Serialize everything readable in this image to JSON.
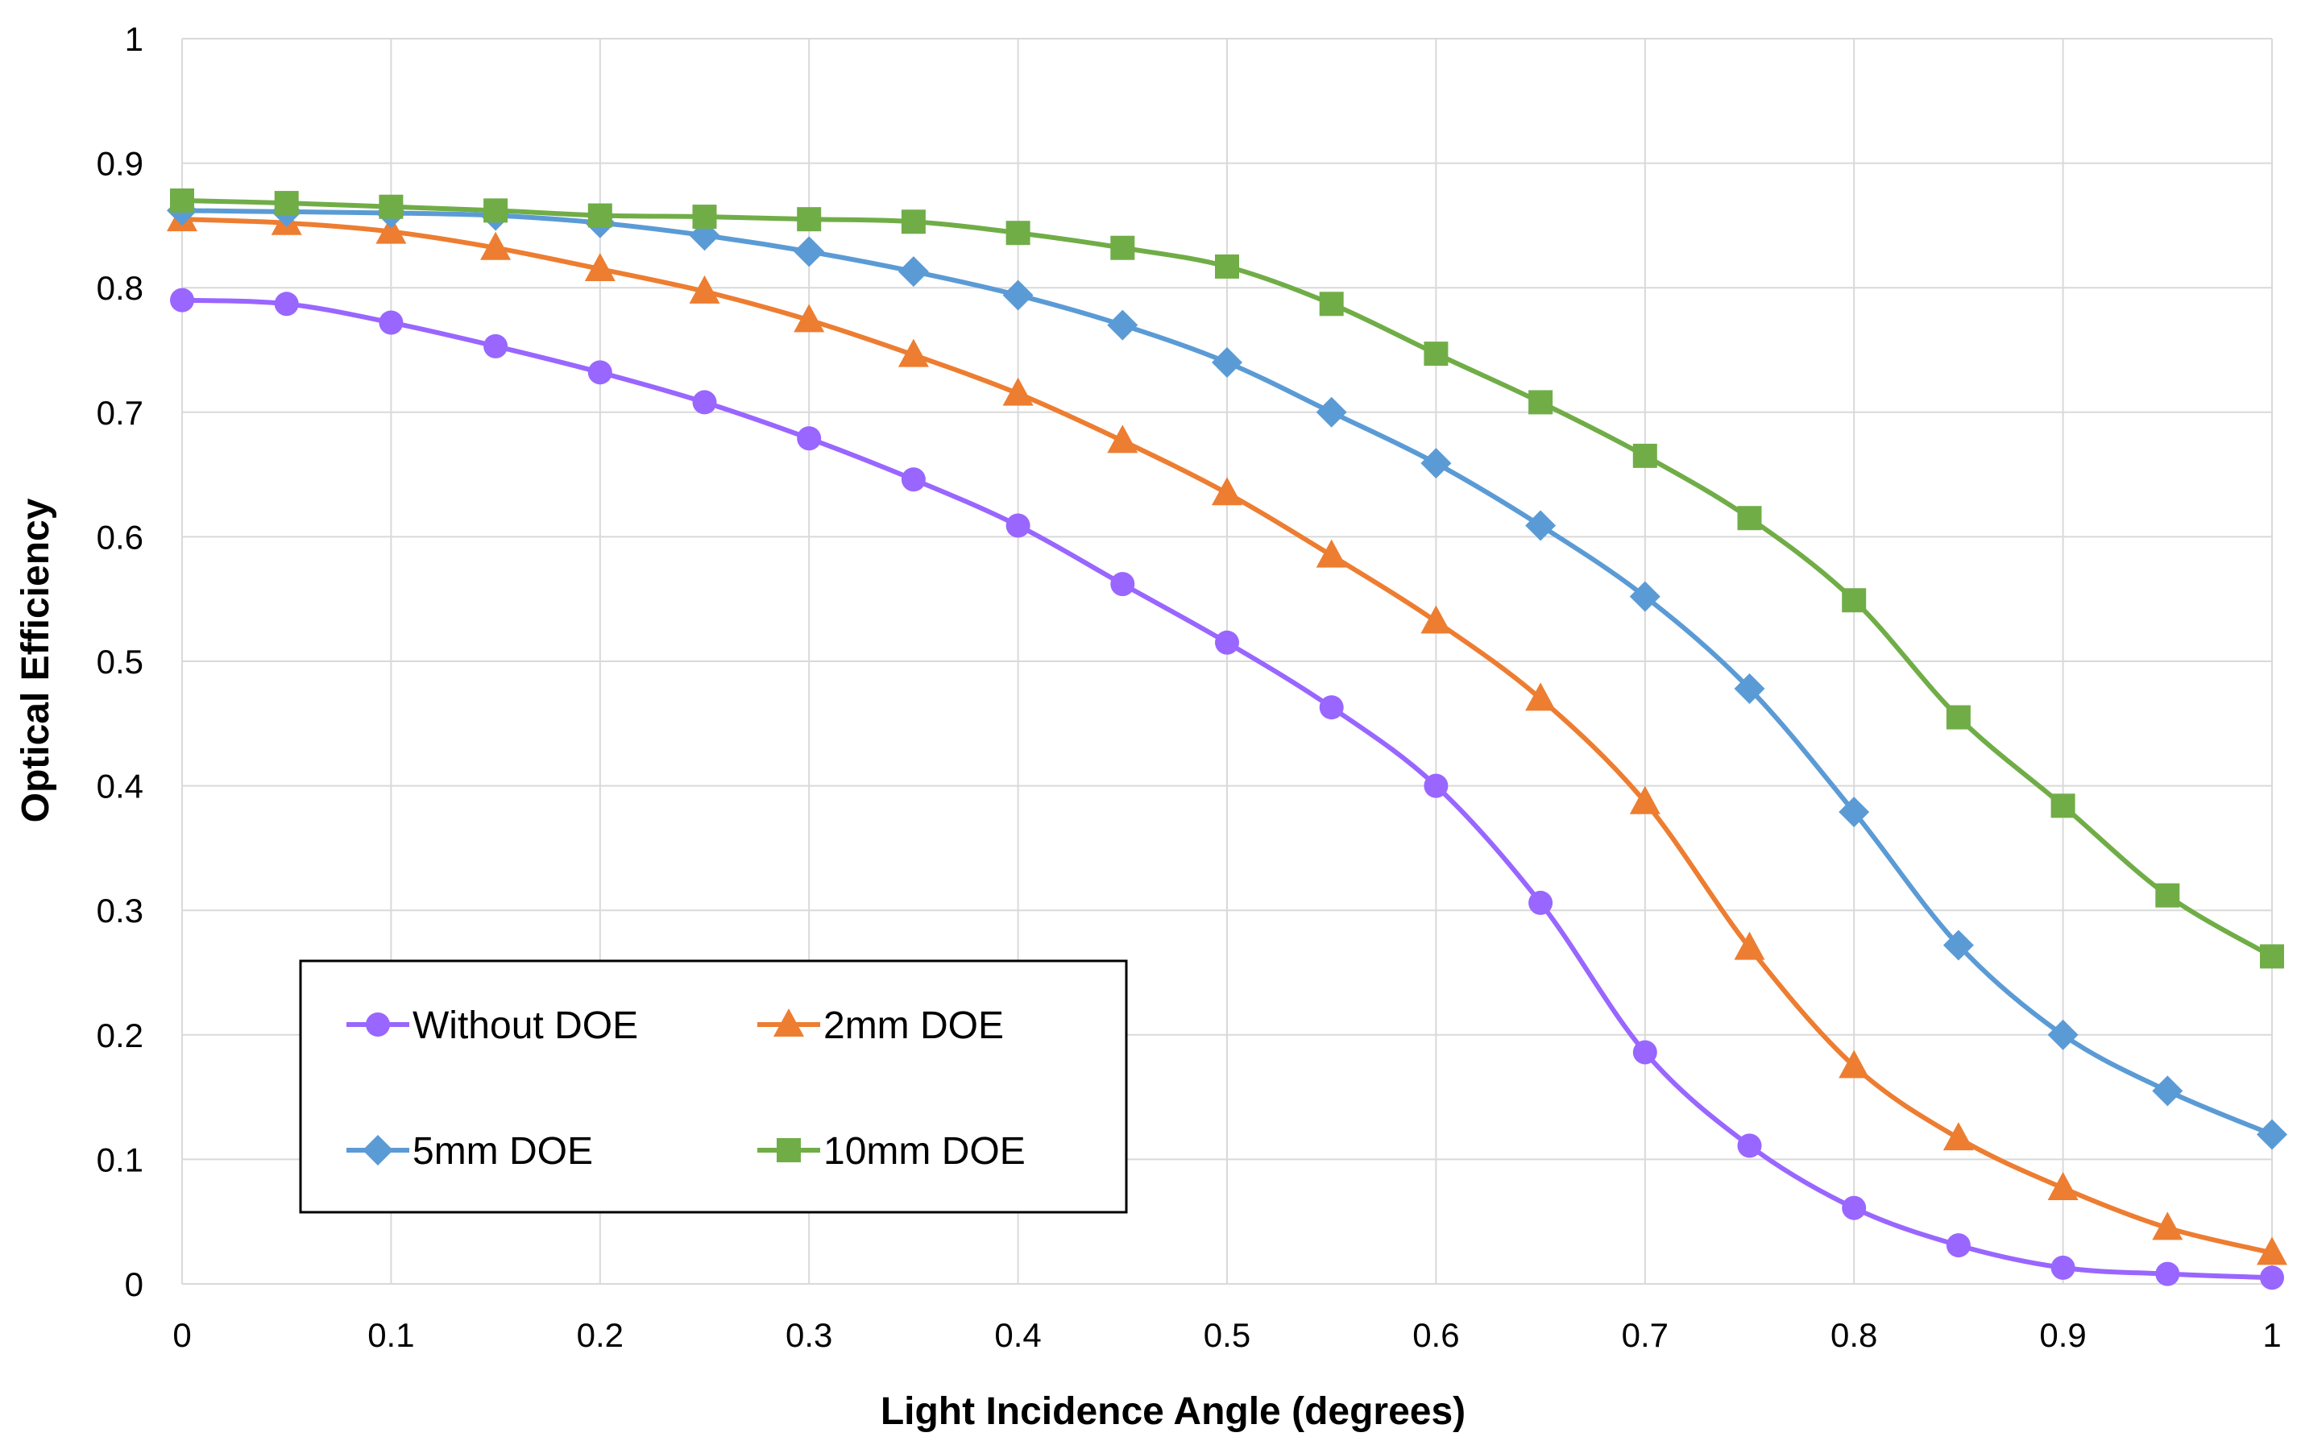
{
  "chart_data": {
    "type": "line",
    "title": "",
    "xlabel": "Light Incidence Angle (degrees)",
    "ylabel": "Optical Efficiency",
    "xlim": [
      0,
      1
    ],
    "ylim": [
      0,
      1
    ],
    "grid": true,
    "legend_position": "bottom-left",
    "x_ticks": [
      "0",
      "0.1",
      "0.2",
      "0.3",
      "0.4",
      "0.5",
      "0.6",
      "0.7",
      "0.8",
      "0.9",
      "1"
    ],
    "y_ticks": [
      "0",
      "0.1",
      "0.2",
      "0.3",
      "0.4",
      "0.5",
      "0.6",
      "0.7",
      "0.8",
      "0.9",
      "1"
    ],
    "x": [
      0,
      0.05,
      0.1,
      0.15,
      0.2,
      0.25,
      0.3,
      0.35,
      0.4,
      0.45,
      0.5,
      0.55,
      0.6,
      0.65,
      0.7,
      0.75,
      0.8,
      0.85,
      0.9,
      0.95,
      1
    ],
    "series": [
      {
        "name": "Without DOE",
        "color": "#9966ff",
        "marker": "circle",
        "values": [
          0.79,
          0.787,
          0.772,
          0.753,
          0.732,
          0.708,
          0.679,
          0.646,
          0.609,
          0.562,
          0.515,
          0.463,
          0.4,
          0.306,
          0.186,
          0.111,
          0.061,
          0.031,
          0.013,
          0.008,
          0.005
        ]
      },
      {
        "name": "2mm DOE",
        "color": "#ed7d31",
        "marker": "triangle",
        "values": [
          0.855,
          0.852,
          0.845,
          0.832,
          0.815,
          0.797,
          0.774,
          0.746,
          0.715,
          0.677,
          0.635,
          0.585,
          0.532,
          0.47,
          0.387,
          0.27,
          0.175,
          0.117,
          0.077,
          0.045,
          0.025
        ]
      },
      {
        "name": "5mm DOE",
        "color": "#5b9bd5",
        "marker": "diamond",
        "values": [
          0.862,
          0.861,
          0.86,
          0.858,
          0.852,
          0.842,
          0.829,
          0.813,
          0.794,
          0.77,
          0.74,
          0.7,
          0.659,
          0.609,
          0.552,
          0.478,
          0.379,
          0.272,
          0.2,
          0.155,
          0.12
        ]
      },
      {
        "name": "10mm DOE",
        "color": "#70ad47",
        "marker": "square",
        "values": [
          0.87,
          0.868,
          0.865,
          0.862,
          0.858,
          0.857,
          0.855,
          0.853,
          0.844,
          0.832,
          0.817,
          0.787,
          0.747,
          0.708,
          0.665,
          0.615,
          0.549,
          0.455,
          0.384,
          0.312,
          0.263
        ]
      }
    ]
  }
}
